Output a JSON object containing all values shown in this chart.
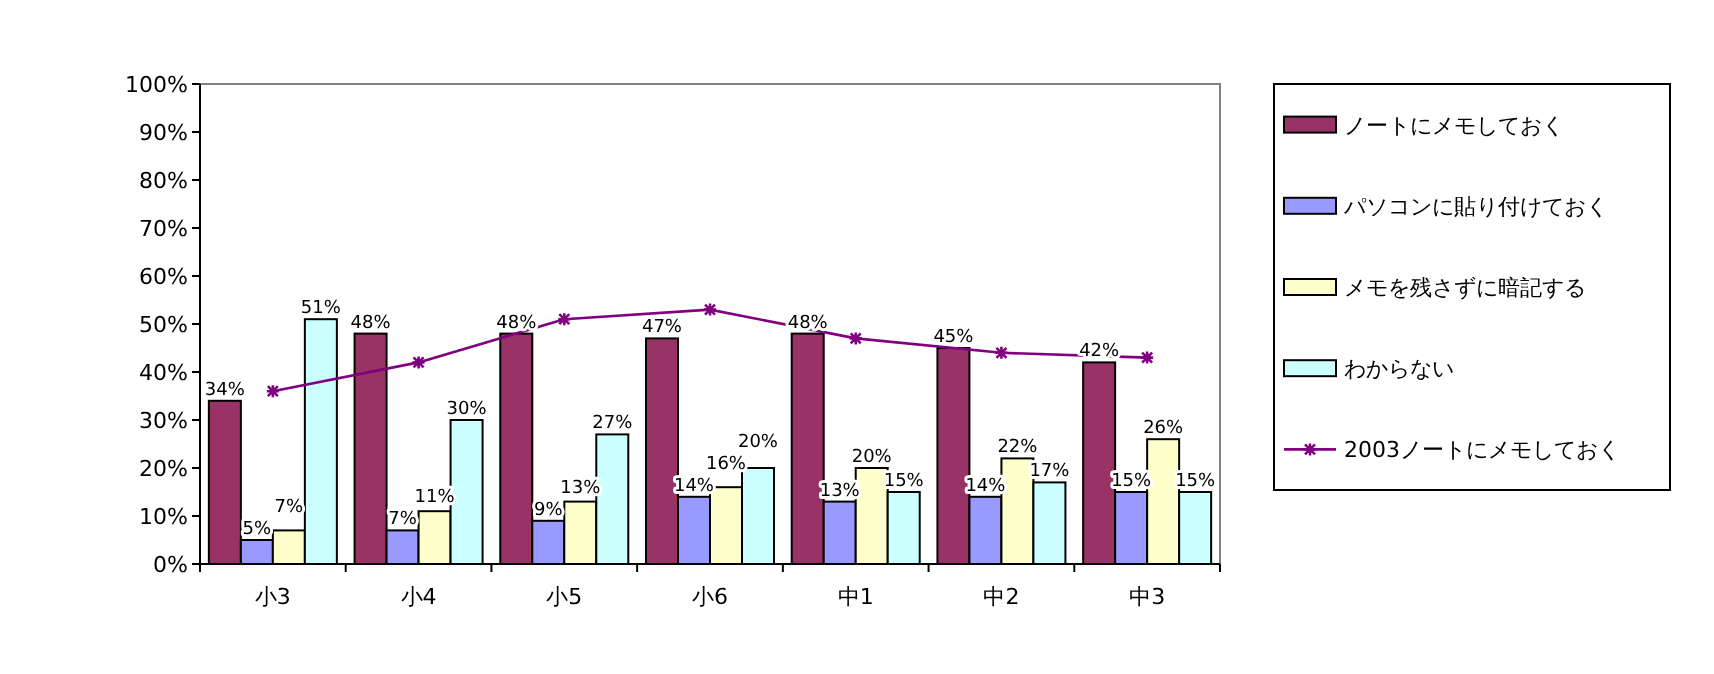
{
  "chart_data": {
    "type": "bar",
    "categories": [
      "小3",
      "小4",
      "小5",
      "小6",
      "中1",
      "中2",
      "中3"
    ],
    "ylim": [
      0,
      100
    ],
    "yticks": [
      {
        "value": 0,
        "label": "0%"
      },
      {
        "value": 10,
        "label": "10%"
      },
      {
        "value": 20,
        "label": "20%"
      },
      {
        "value": 30,
        "label": "30%"
      },
      {
        "value": 40,
        "label": "40%"
      },
      {
        "value": 50,
        "label": "50%"
      },
      {
        "value": 60,
        "label": "60%"
      },
      {
        "value": 70,
        "label": "70%"
      },
      {
        "value": 80,
        "label": "80%"
      },
      {
        "value": 90,
        "label": "90%"
      },
      {
        "value": 100,
        "label": "100%"
      }
    ],
    "legend": "right",
    "series": [
      {
        "name": "ノートにメモしておく",
        "color": "#993366",
        "values": [
          34,
          48,
          48,
          47,
          48,
          45,
          42
        ],
        "value_labels": [
          "34%",
          "48%",
          "48%",
          "47%",
          "48%",
          "45%",
          "42%"
        ]
      },
      {
        "name": "パソコンに貼り付けておく",
        "color": "#9999ff",
        "values": [
          5,
          7,
          9,
          14,
          13,
          14,
          15
        ],
        "value_labels": [
          "5%",
          "7%",
          "9%",
          "14%",
          "13%",
          "14%",
          "15%"
        ]
      },
      {
        "name": "メモを残さずに暗記する",
        "color": "#ffffcc",
        "values": [
          7,
          11,
          13,
          16,
          20,
          22,
          26
        ],
        "value_labels": [
          "7%",
          "11%",
          "13%",
          "16%",
          "20%",
          "22%",
          "26%"
        ]
      },
      {
        "name": "わからない",
        "color": "#ccffff",
        "values": [
          51,
          30,
          27,
          20,
          15,
          17,
          15
        ],
        "value_labels": [
          "51%",
          "30%",
          "27%",
          "20%",
          "15%",
          "17%",
          "15%"
        ]
      },
      {
        "name": "2003ノートにメモしておく",
        "type": "line",
        "marker": "cross",
        "color": "#800080",
        "values": [
          36,
          42,
          51,
          53,
          47,
          44,
          43
        ]
      }
    ]
  }
}
